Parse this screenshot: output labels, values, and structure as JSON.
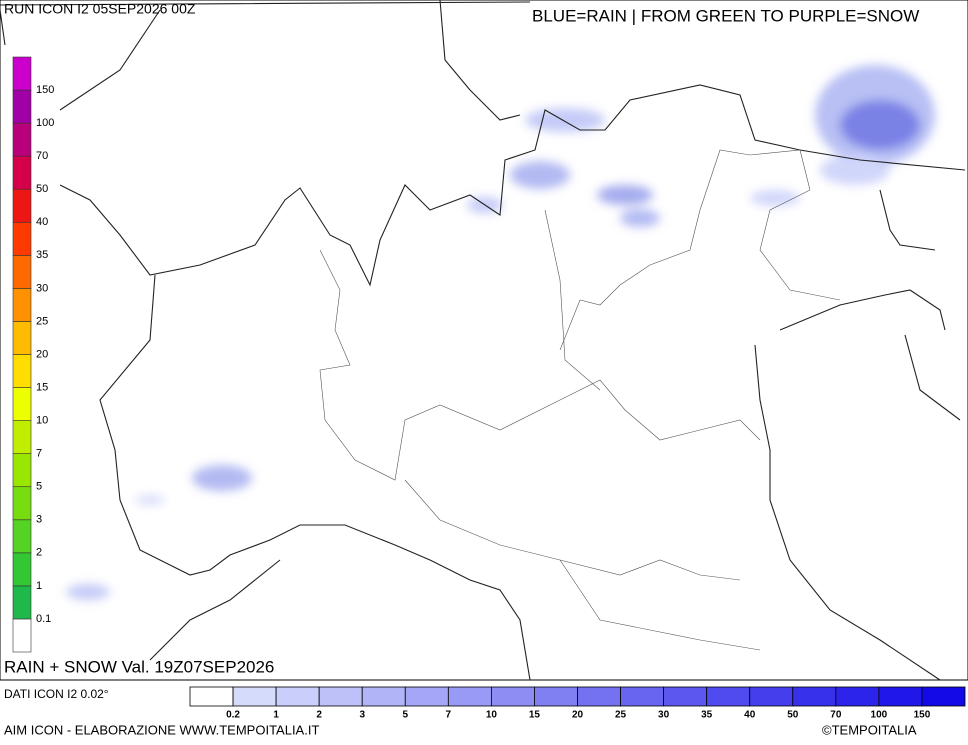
{
  "header": {
    "run": "RUN ICON I2 05SEP2026 00Z",
    "legend_note": "BLUE=RAIN | FROM GREEN TO PURPLE=SNOW"
  },
  "snow_scale": {
    "labels": [
      "0.1",
      "1",
      "2",
      "3",
      "5",
      "7",
      "10",
      "15",
      "20",
      "25",
      "30",
      "35",
      "40",
      "50",
      "70",
      "100",
      "150"
    ]
  },
  "footer": {
    "field": "RAIN + SNOW Val. 19Z07SEP2026",
    "data_source": "DATI ICON I2 0.02°",
    "credit": "AIM ICON - ELABORAZIONE WWW.TEMPOITALIA.IT",
    "copyright": "©TEMPOITALIA"
  },
  "rain_scale": {
    "labels": [
      "0.2",
      "1",
      "2",
      "3",
      "5",
      "7",
      "10",
      "15",
      "20",
      "25",
      "30",
      "35",
      "40",
      "50",
      "70",
      "100",
      "150"
    ]
  }
}
